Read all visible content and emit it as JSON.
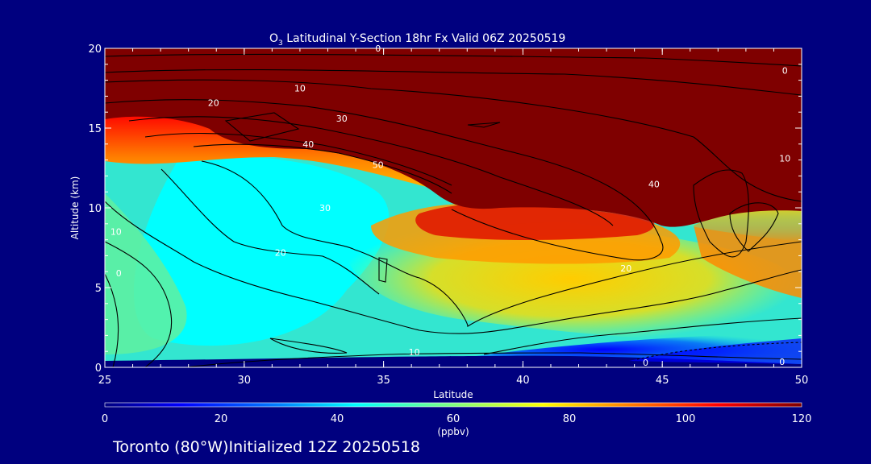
{
  "chart_data": {
    "type": "heatmap",
    "title": "O₃ Latitudinal Y-Section 18hr  Fx Valid 06Z 20250519",
    "title_parts": {
      "sym": "O",
      "sub": "3",
      "rest": " Latitudinal Y-Section 18hr  Fx Valid 06Z 20250519"
    },
    "xlabel": "Latitude",
    "ylabel": "Altitude (km)",
    "xlim": [
      25,
      50
    ],
    "ylim": [
      0,
      20
    ],
    "xticks": [
      "25",
      "30",
      "35",
      "40",
      "45",
      "50"
    ],
    "yticks": [
      "0",
      "5",
      "10",
      "15",
      "20"
    ],
    "colorbar": {
      "ticks": [
        "0",
        "20",
        "40",
        "60",
        "80",
        "100",
        "120"
      ],
      "range": [
        0,
        120
      ],
      "unit": "(ppbv)",
      "colors": [
        "#00007f",
        "#0000ff",
        "#0080ff",
        "#00ffff",
        "#80ff80",
        "#ffff00",
        "#ff8000",
        "#ff0000",
        "#7f0000"
      ]
    },
    "contour_labels": [
      {
        "text": "0",
        "lat": 34.8,
        "alt": 20.0
      },
      {
        "text": "0",
        "lat": 49.4,
        "alt": 18.6
      },
      {
        "text": "10",
        "lat": 32.0,
        "alt": 17.5
      },
      {
        "text": "20",
        "lat": 28.9,
        "alt": 16.6
      },
      {
        "text": "30",
        "lat": 33.5,
        "alt": 15.6
      },
      {
        "text": "40",
        "lat": 32.3,
        "alt": 14.0
      },
      {
        "text": "50",
        "lat": 34.8,
        "alt": 12.7
      },
      {
        "text": "30",
        "lat": 32.9,
        "alt": 10.0
      },
      {
        "text": "20",
        "lat": 31.3,
        "alt": 7.2
      },
      {
        "text": "10",
        "lat": 25.4,
        "alt": 8.5
      },
      {
        "text": "0",
        "lat": 25.5,
        "alt": 5.9
      },
      {
        "text": "20",
        "lat": 43.7,
        "alt": 6.2
      },
      {
        "text": "10",
        "lat": 49.4,
        "alt": 13.1
      },
      {
        "text": "40",
        "lat": 44.7,
        "alt": 11.5
      },
      {
        "text": "10",
        "lat": 36.1,
        "alt": 0.95
      },
      {
        "text": "0",
        "lat": 44.4,
        "alt": 0.3
      },
      {
        "text": "0",
        "lat": 49.3,
        "alt": 0.35
      }
    ],
    "footer": "Toronto (80°W)Initialized 12Z 20250518"
  }
}
